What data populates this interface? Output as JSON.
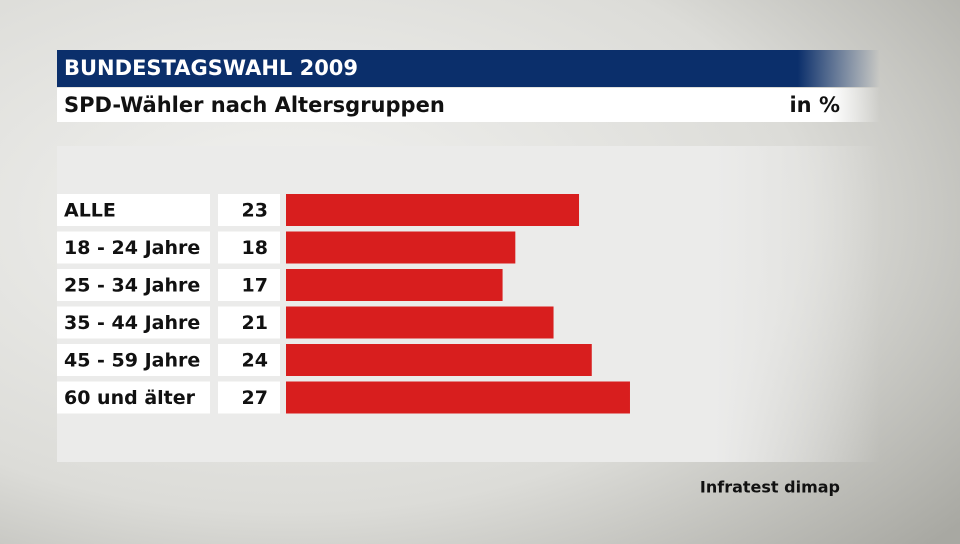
{
  "chart_data": {
    "type": "bar",
    "title": "BUNDESTAGSWAHL 2009",
    "subtitle": "SPD-Wähler nach Altersgruppen",
    "unit": "in %",
    "source": "Infratest dimap",
    "categories": [
      "ALLE",
      "18 - 24 Jahre",
      "25 - 34 Jahre",
      "35 - 44 Jahre",
      "45 - 59 Jahre",
      "60 und älter"
    ],
    "values": [
      23,
      18,
      17,
      21,
      24,
      27
    ],
    "color": "#d81e1e"
  }
}
